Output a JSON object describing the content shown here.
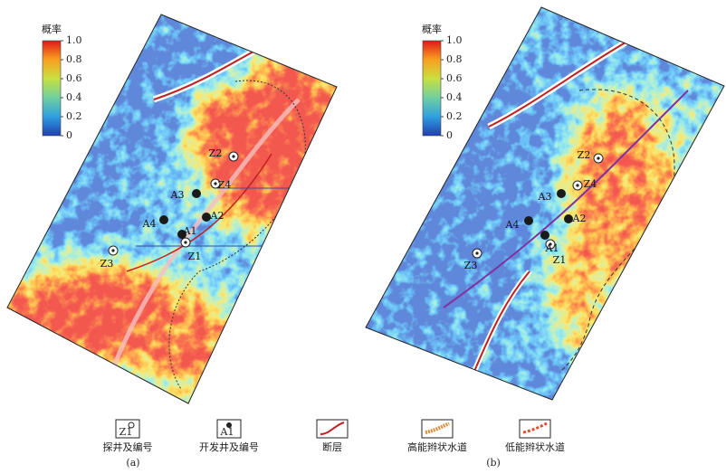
{
  "panels": [
    {
      "label": "(a)",
      "colorbar": {
        "title": "概率",
        "ticks": [
          "1.0",
          "0.8",
          "0.6",
          "0.4",
          "0.2",
          "0"
        ]
      },
      "wells": [
        {
          "label": "Z2",
          "kind": "exploration"
        },
        {
          "label": "Z4",
          "kind": "exploration"
        },
        {
          "label": "Z1",
          "kind": "exploration"
        },
        {
          "label": "Z3",
          "kind": "exploration"
        },
        {
          "label": "A3",
          "kind": "development"
        },
        {
          "label": "A4",
          "kind": "development"
        },
        {
          "label": "A2",
          "kind": "development"
        },
        {
          "label": "A1",
          "kind": "development"
        }
      ]
    },
    {
      "label": "(b)",
      "colorbar": {
        "title": "概率",
        "ticks": [
          "1.0",
          "0.8",
          "0.6",
          "0.4",
          "0.2",
          "0"
        ]
      },
      "wells": [
        {
          "label": "Z2",
          "kind": "exploration"
        },
        {
          "label": "Z4",
          "kind": "exploration"
        },
        {
          "label": "Z1",
          "kind": "exploration"
        },
        {
          "label": "Z3",
          "kind": "exploration"
        },
        {
          "label": "A3",
          "kind": "development"
        },
        {
          "label": "A4",
          "kind": "development"
        },
        {
          "label": "A2",
          "kind": "development"
        },
        {
          "label": "A1",
          "kind": "development"
        }
      ]
    }
  ],
  "legend": [
    {
      "icon_text": "Z1",
      "label": "探井及编号"
    },
    {
      "icon_text": "A1",
      "label": "开发井及编号"
    },
    {
      "label": "断层"
    },
    {
      "label": "高能辫状水道"
    },
    {
      "label": "低能辫状水道"
    }
  ]
}
